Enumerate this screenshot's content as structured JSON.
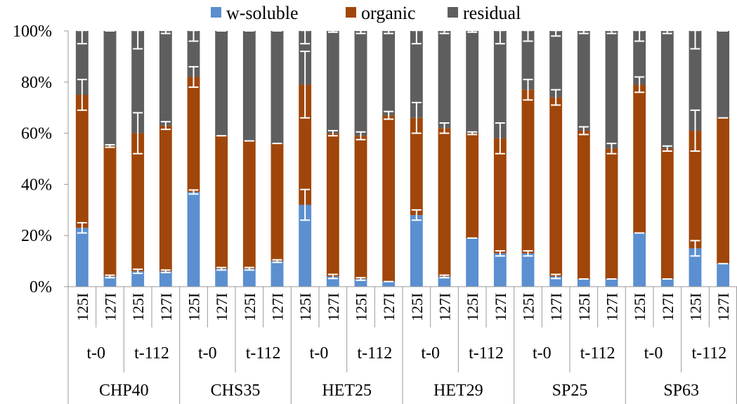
{
  "chart_data": {
    "type": "bar",
    "stacked": "percent",
    "title": "",
    "xlabel": "",
    "ylabel": "",
    "ylim": [
      0,
      100
    ],
    "yticks": [
      "0%",
      "20%",
      "40%",
      "60%",
      "80%",
      "100%"
    ],
    "grid": false,
    "legend": {
      "position": "top",
      "entries": [
        "w-soluble",
        "organic",
        "residual"
      ]
    },
    "colors": {
      "w-soluble": "#5b8fd0",
      "organic": "#a0460a",
      "residual": "#5e5e5e"
    },
    "categories": [
      {
        "group": "CHP40",
        "time": "t-0",
        "isotope": "125I"
      },
      {
        "group": "CHP40",
        "time": "t-0",
        "isotope": "127I"
      },
      {
        "group": "CHP40",
        "time": "t-112",
        "isotope": "125I"
      },
      {
        "group": "CHP40",
        "time": "t-112",
        "isotope": "127I"
      },
      {
        "group": "CHS35",
        "time": "t-0",
        "isotope": "125I"
      },
      {
        "group": "CHS35",
        "time": "t-0",
        "isotope": "127I"
      },
      {
        "group": "CHS35",
        "time": "t-112",
        "isotope": "125I"
      },
      {
        "group": "CHS35",
        "time": "t-112",
        "isotope": "127I"
      },
      {
        "group": "HET25",
        "time": "t-0",
        "isotope": "125I"
      },
      {
        "group": "HET25",
        "time": "t-0",
        "isotope": "127I"
      },
      {
        "group": "HET25",
        "time": "t-112",
        "isotope": "125I"
      },
      {
        "group": "HET25",
        "time": "t-112",
        "isotope": "127I"
      },
      {
        "group": "HET29",
        "time": "t-0",
        "isotope": "125I"
      },
      {
        "group": "HET29",
        "time": "t-0",
        "isotope": "127I"
      },
      {
        "group": "HET29",
        "time": "t-112",
        "isotope": "125I"
      },
      {
        "group": "HET29",
        "time": "t-112",
        "isotope": "127I"
      },
      {
        "group": "SP25",
        "time": "t-0",
        "isotope": "125I"
      },
      {
        "group": "SP25",
        "time": "t-0",
        "isotope": "127I"
      },
      {
        "group": "SP25",
        "time": "t-112",
        "isotope": "125I"
      },
      {
        "group": "SP25",
        "time": "t-112",
        "isotope": "127I"
      },
      {
        "group": "SP63",
        "time": "t-0",
        "isotope": "125I"
      },
      {
        "group": "SP63",
        "time": "t-0",
        "isotope": "127I"
      },
      {
        "group": "SP63",
        "time": "t-112",
        "isotope": "125I"
      },
      {
        "group": "SP63",
        "time": "t-112",
        "isotope": "127I"
      }
    ],
    "series": [
      {
        "name": "w-soluble",
        "values": [
          23,
          4,
          6,
          6,
          37,
          7,
          7,
          10,
          32,
          4,
          3,
          2,
          28,
          4,
          19,
          13,
          13,
          4,
          3,
          3,
          21,
          3,
          15,
          9
        ],
        "errors": [
          2,
          0.5,
          0.8,
          0.5,
          0.8,
          0.5,
          0.5,
          0.5,
          6,
          0.8,
          0.5,
          0.3,
          2,
          0.5,
          0.3,
          1,
          1,
          0.8,
          0.3,
          0.3,
          0.3,
          0.3,
          3,
          0.3
        ]
      },
      {
        "name": "organic",
        "values": [
          52,
          51,
          54,
          57,
          45,
          52,
          50,
          46,
          47,
          56,
          56,
          65,
          38,
          58,
          41,
          45,
          64,
          70,
          58,
          51,
          58,
          51,
          46,
          57
        ],
        "errors": [
          6,
          0.5,
          8,
          1.5,
          4,
          0.3,
          0.3,
          0.3,
          13,
          1,
          1.5,
          1.5,
          6,
          2,
          0.5,
          6,
          4,
          3,
          1.5,
          2,
          3,
          1,
          8,
          0.3
        ]
      },
      {
        "name": "residual",
        "values": [
          25,
          45,
          40,
          37,
          18,
          41,
          43,
          44,
          21,
          40,
          41,
          33,
          34,
          38,
          40,
          42,
          23,
          26,
          39,
          46,
          21,
          46,
          39,
          34
        ],
        "errors": [
          5,
          0.3,
          7,
          1,
          4,
          0.3,
          0.3,
          0.3,
          5,
          0.5,
          1,
          1,
          5,
          1,
          0.5,
          5,
          4,
          2,
          1,
          1,
          4,
          1,
          7,
          0.3
        ]
      }
    ]
  }
}
